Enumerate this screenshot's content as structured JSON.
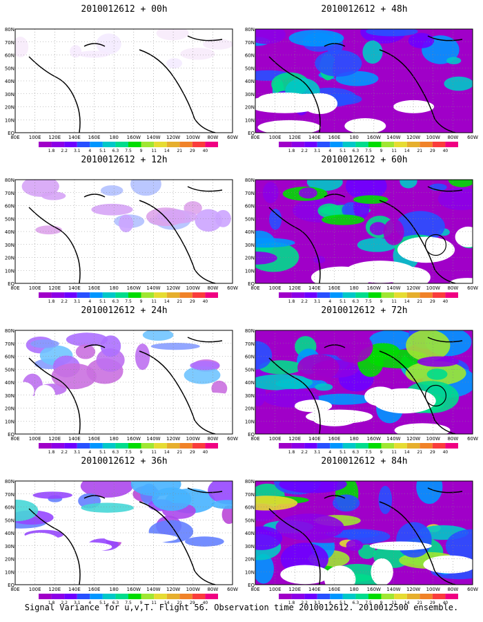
{
  "figure": {
    "caption": "Signal Variance for u,v,T. Flight 56. Observation time 2010012612. 2010012500 ensemble."
  },
  "chart_data": [
    {
      "type": "heatmap",
      "title": "2010012612 + 00h",
      "field_level": 0.05,
      "features": []
    },
    {
      "type": "heatmap",
      "title": "2010012612 + 48h",
      "field_level": 0.55,
      "features": []
    },
    {
      "type": "heatmap",
      "title": "2010012612 + 12h",
      "field_level": 0.22,
      "features": []
    },
    {
      "type": "heatmap",
      "title": "2010012612 + 60h",
      "field_level": 0.65,
      "features": [
        "circle"
      ]
    },
    {
      "type": "heatmap",
      "title": "2010012612 + 24h",
      "field_level": 0.35,
      "features": []
    },
    {
      "type": "heatmap",
      "title": "2010012612 + 72h",
      "field_level": 0.75,
      "features": [
        "circle"
      ]
    },
    {
      "type": "heatmap",
      "title": "2010012612 + 36h",
      "field_level": 0.45,
      "features": []
    },
    {
      "type": "heatmap",
      "title": "2010012612 + 84h",
      "field_level": 0.9,
      "features": []
    }
  ],
  "axes": {
    "x_ticks": [
      "80E",
      "100E",
      "120E",
      "140E",
      "160E",
      "180",
      "160W",
      "140W",
      "120W",
      "100W",
      "80W",
      "60W"
    ],
    "y_ticks": [
      "EQ",
      "10N",
      "20N",
      "30N",
      "40N",
      "50N",
      "60N",
      "70N",
      "80N"
    ],
    "xlim": [
      "80E",
      "60W"
    ],
    "ylim": [
      "EQ",
      "80N"
    ]
  },
  "colorbar": {
    "labels": [
      "1.8",
      "2.2",
      "3.1",
      "4",
      "5.1",
      "6.3",
      "7.5",
      "9",
      "11",
      "14",
      "21",
      "29",
      "40"
    ],
    "colors": [
      "#a000c8",
      "#8c00e6",
      "#6e00ff",
      "#2850ff",
      "#0096ff",
      "#00c8c8",
      "#00dc8c",
      "#00dc00",
      "#a0e632",
      "#e6dc32",
      "#e6af2d",
      "#f08228",
      "#fa3c3c",
      "#f00082"
    ]
  }
}
